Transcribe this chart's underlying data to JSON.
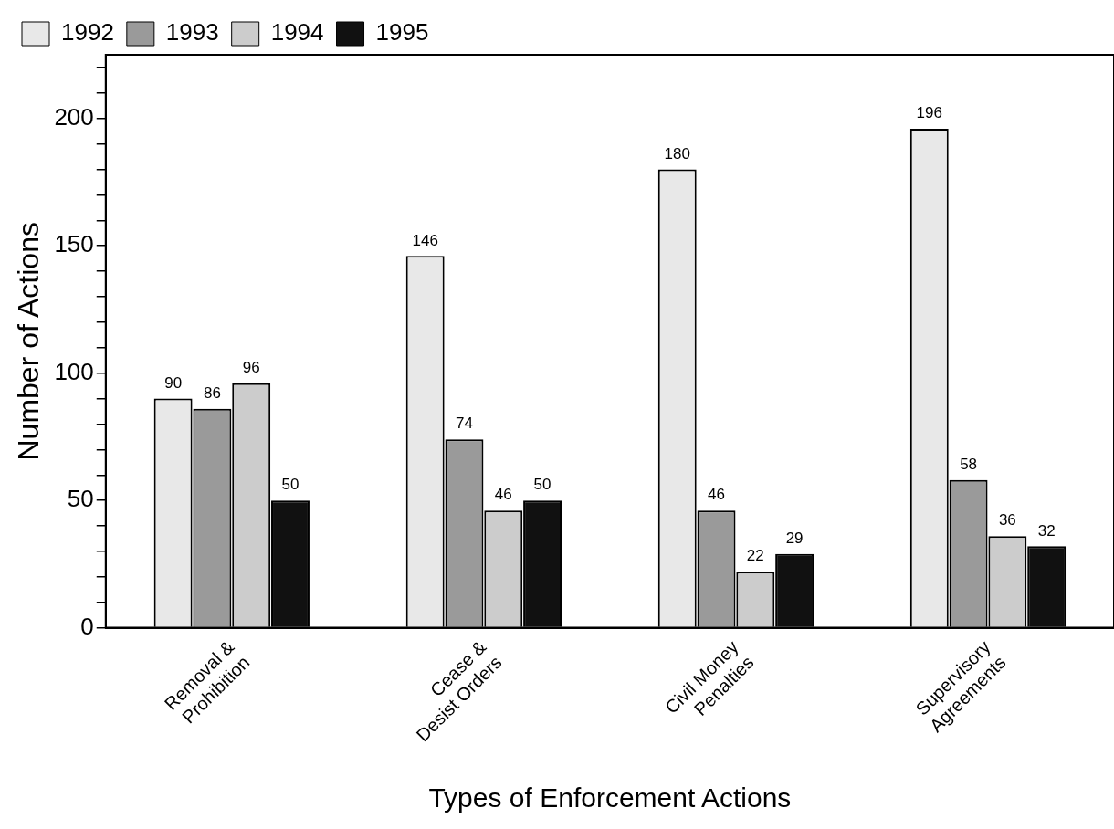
{
  "chart_data": {
    "type": "bar",
    "xlabel": "Types of Enforcement Actions",
    "ylabel": "Number of Actions",
    "categories": [
      "Removal & Prohibition",
      "Cease & Desist Orders",
      "Civil Money Penalties",
      "Supervisory Agreements"
    ],
    "series": [
      {
        "name": "1992",
        "color": "#e8e8e8",
        "values": [
          90,
          146,
          180,
          196
        ]
      },
      {
        "name": "1993",
        "color": "#9a9a9a",
        "values": [
          86,
          74,
          46,
          58
        ]
      },
      {
        "name": "1994",
        "color": "#cccccc",
        "values": [
          96,
          46,
          22,
          36
        ]
      },
      {
        "name": "1995",
        "color": "#111111",
        "values": [
          50,
          50,
          29,
          32
        ]
      }
    ],
    "ylim": [
      0,
      225
    ],
    "yticks": [
      0,
      {
        "value": 10,
        "label": null
      },
      {
        "value": 20,
        "label": null
      },
      {
        "value": 30,
        "label": null
      },
      {
        "value": 40,
        "label": null
      },
      50,
      {
        "value": 60,
        "label": null
      },
      {
        "value": 70,
        "label": null
      },
      {
        "value": 80,
        "label": null
      },
      {
        "value": 90,
        "label": null
      },
      100,
      {
        "value": 110,
        "label": null
      },
      {
        "value": 120,
        "label": null
      },
      {
        "value": 130,
        "label": null
      },
      {
        "value": 140,
        "label": null
      },
      150,
      {
        "value": 160,
        "label": null
      },
      {
        "value": 170,
        "label": null
      },
      {
        "value": 180,
        "label": null
      },
      {
        "value": 190,
        "label": null
      },
      200,
      {
        "value": 210,
        "label": null
      },
      {
        "value": 220,
        "label": null
      }
    ],
    "grid": false,
    "legend": "top left",
    "data_labels": true
  }
}
